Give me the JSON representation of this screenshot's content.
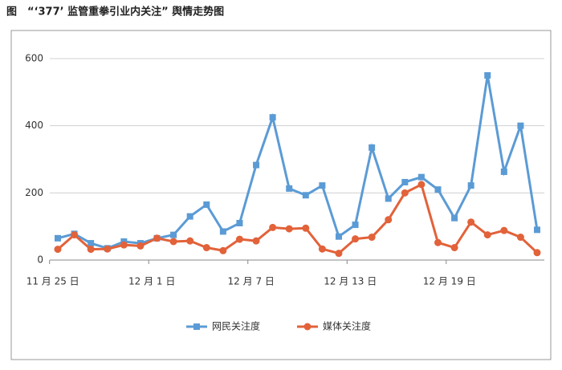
{
  "chart_data": {
    "type": "line",
    "title": "图　“‘377’ 监管重拳引业内关注” 舆情走势图",
    "categories": [
      "11 月 25 日",
      null,
      null,
      null,
      null,
      null,
      "12 月 1 日",
      null,
      null,
      null,
      null,
      null,
      "12 月 7 日",
      null,
      null,
      null,
      null,
      null,
      "12 月 13 日",
      null,
      null,
      null,
      null,
      null,
      "12 月 19 日",
      null,
      null,
      null,
      null,
      null
    ],
    "series": [
      {
        "name": "网民关注度",
        "color": "#5b9bd5",
        "marker": "square",
        "values": [
          65,
          78,
          50,
          35,
          55,
          50,
          65,
          75,
          130,
          165,
          85,
          110,
          283,
          425,
          213,
          193,
          222,
          70,
          105,
          335,
          183,
          232,
          247,
          210,
          125,
          222,
          550,
          263,
          400,
          90
        ]
      },
      {
        "name": "媒体关注度",
        "color": "#e2623a",
        "marker": "circle",
        "values": [
          32,
          75,
          32,
          33,
          45,
          42,
          65,
          55,
          57,
          37,
          28,
          62,
          57,
          97,
          93,
          95,
          33,
          20,
          63,
          68,
          120,
          200,
          225,
          52,
          37,
          113,
          75,
          88,
          68,
          22
        ]
      }
    ],
    "ylim": [
      0,
      600
    ],
    "yticks": [
      0,
      200,
      400,
      600
    ],
    "grid": true,
    "legend": "bottom"
  }
}
